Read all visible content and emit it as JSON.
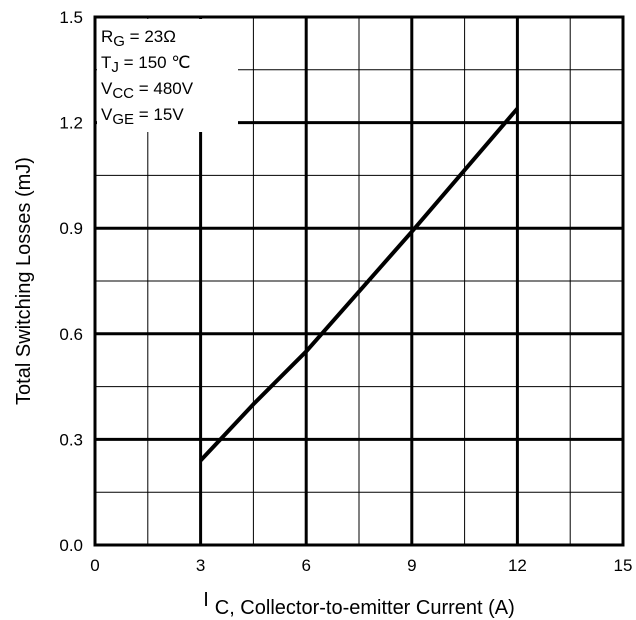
{
  "chart_data": {
    "type": "line",
    "title": "",
    "xlabel": "C, Collector-to-emitter Current (A)",
    "xlabel_prefix": "I",
    "ylabel": "Total Switching Losses (mJ)",
    "xlim": [
      0,
      15
    ],
    "ylim": [
      0,
      1.5
    ],
    "x_ticks": [
      "0",
      "3",
      "6",
      "9",
      "12",
      "15"
    ],
    "y_ticks": [
      "0.0",
      "0.3",
      "0.6",
      "0.9",
      "1.2",
      "1.5"
    ],
    "grid": true,
    "legend": "none",
    "line_color": "#000000",
    "series": [
      {
        "x": [
          3,
          4.5,
          6,
          9,
          12
        ],
        "y": [
          0.24,
          0.4,
          0.55,
          0.89,
          1.24
        ]
      }
    ],
    "annotations": [
      {
        "base": "R",
        "sub": "G",
        "rest": "  = 23Ω"
      },
      {
        "base": "T",
        "sub": "J",
        "rest": "  = 150 ℃"
      },
      {
        "base": "V",
        "sub": "CC",
        "rest": " = 480V"
      },
      {
        "base": "V",
        "sub": "GE",
        "rest": " = 15V"
      }
    ]
  }
}
